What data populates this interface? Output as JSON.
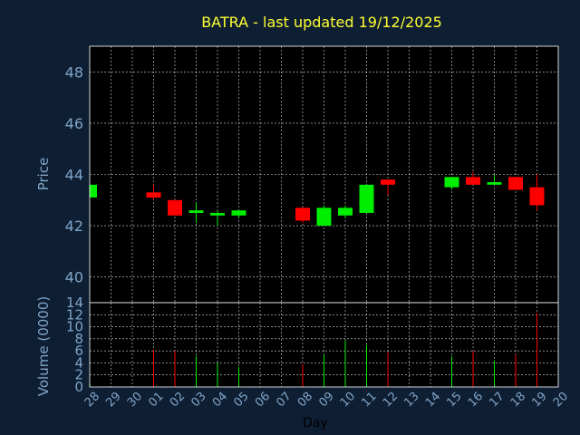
{
  "chart_data": {
    "type": "candlestick",
    "title": "BATRA - last updated 19/12/2025",
    "price_panel": {
      "ylabel": "Price",
      "ylim": [
        39,
        49
      ],
      "yticks": [
        40,
        42,
        44,
        46,
        48
      ]
    },
    "volume_panel": {
      "ylabel": "Volume (0000)",
      "ylim": [
        0,
        14
      ],
      "yticks": [
        0,
        2,
        4,
        6,
        8,
        10,
        12,
        14
      ]
    },
    "xlabel": "Day",
    "x_ticks": [
      "28",
      "29",
      "30",
      "01",
      "02",
      "03",
      "04",
      "05",
      "06",
      "07",
      "08",
      "09",
      "10",
      "11",
      "12",
      "13",
      "14",
      "15",
      "16",
      "17",
      "18",
      "19",
      "20"
    ],
    "candles": [
      {
        "day": "28",
        "open": 43.1,
        "high": 43.6,
        "low": 43.1,
        "close": 43.6,
        "volume": 0.5
      },
      {
        "day": "01",
        "open": 43.3,
        "high": 43.6,
        "low": 43.0,
        "close": 43.1,
        "volume": 6.2
      },
      {
        "day": "02",
        "open": 43.0,
        "high": 43.0,
        "low": 42.4,
        "close": 42.4,
        "volume": 6.0
      },
      {
        "day": "03",
        "open": 42.5,
        "high": 42.9,
        "low": 42.1,
        "close": 42.6,
        "volume": 5.2
      },
      {
        "day": "04",
        "open": 42.4,
        "high": 42.6,
        "low": 42.0,
        "close": 42.5,
        "volume": 4.0
      },
      {
        "day": "05",
        "open": 42.4,
        "high": 42.6,
        "low": 42.3,
        "close": 42.6,
        "volume": 3.3
      },
      {
        "day": "08",
        "open": 42.7,
        "high": 42.7,
        "low": 42.1,
        "close": 42.2,
        "volume": 3.8
      },
      {
        "day": "09",
        "open": 42.0,
        "high": 42.8,
        "low": 42.0,
        "close": 42.7,
        "volume": 5.3
      },
      {
        "day": "10",
        "open": 42.4,
        "high": 42.8,
        "low": 42.3,
        "close": 42.7,
        "volume": 7.7
      },
      {
        "day": "11",
        "open": 42.5,
        "high": 43.6,
        "low": 42.5,
        "close": 43.6,
        "volume": 7.0
      },
      {
        "day": "12",
        "open": 43.8,
        "high": 43.8,
        "low": 43.2,
        "close": 43.6,
        "volume": 5.8
      },
      {
        "day": "15",
        "open": 43.5,
        "high": 43.9,
        "low": 43.4,
        "close": 43.9,
        "volume": 5.1
      },
      {
        "day": "16",
        "open": 43.9,
        "high": 44.1,
        "low": 43.6,
        "close": 43.6,
        "volume": 5.9
      },
      {
        "day": "17",
        "open": 43.6,
        "high": 44.0,
        "low": 43.6,
        "close": 43.7,
        "volume": 4.4
      },
      {
        "day": "18",
        "open": 43.9,
        "high": 43.9,
        "low": 43.4,
        "close": 43.4,
        "volume": 5.3
      },
      {
        "day": "19",
        "open": 43.5,
        "high": 44.0,
        "low": 42.6,
        "close": 42.8,
        "volume": 12.3
      }
    ],
    "colors": {
      "up": "#00ee00",
      "down": "#ff0000",
      "background": "#0f1f33",
      "plot_background": "#000000",
      "grid": "#ffffff",
      "title": "#ffff33",
      "axis_text": "#7fa4c8"
    },
    "grid": true
  }
}
